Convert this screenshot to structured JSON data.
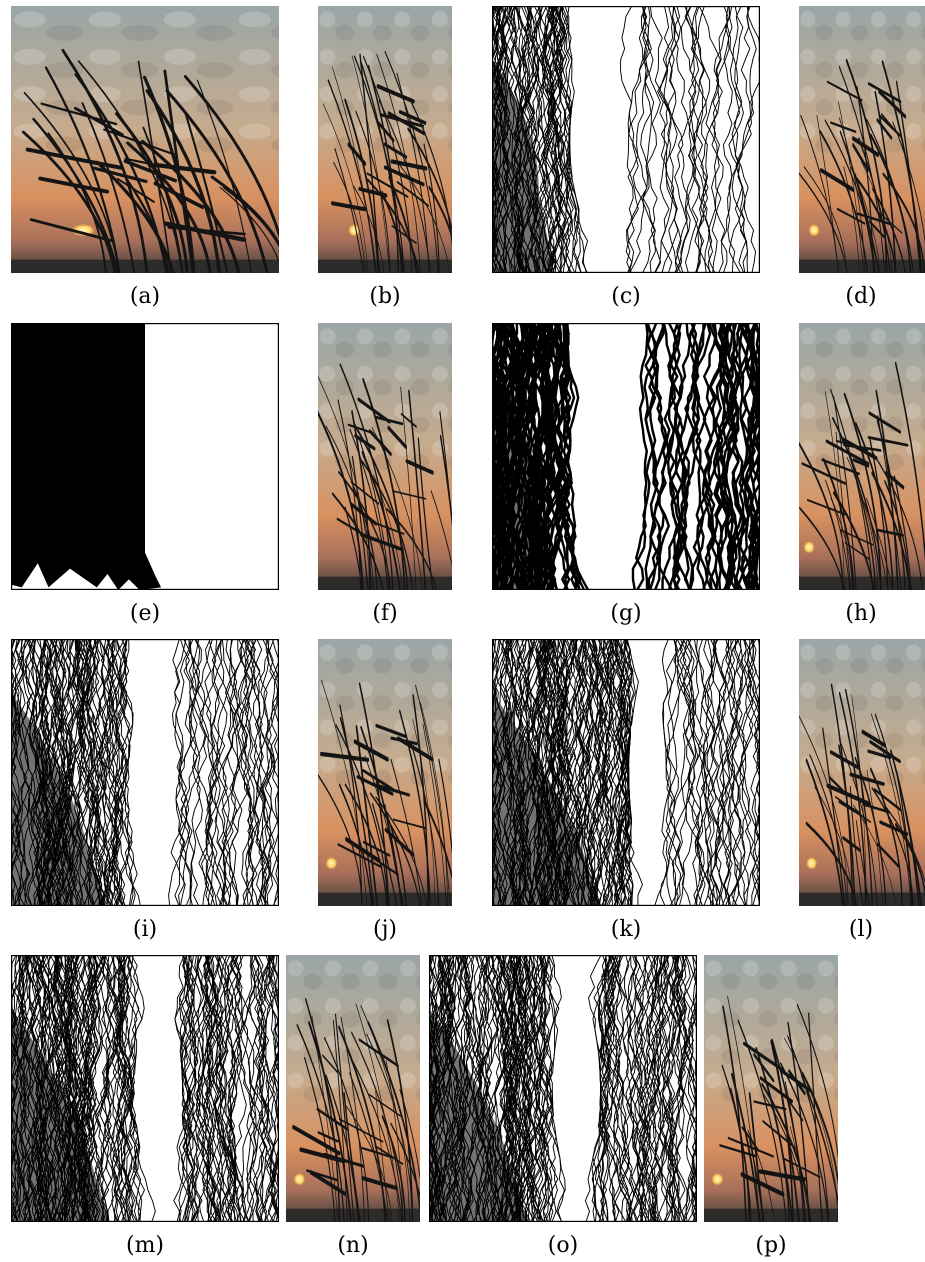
{
  "figure": {
    "panels": [
      {
        "id": "a",
        "caption": "(a)",
        "kind": "photo",
        "content": "sunset with reeds, original"
      },
      {
        "id": "b",
        "caption": "(b)",
        "kind": "photo",
        "content": "retargeted narrow result"
      },
      {
        "id": "c",
        "caption": "(c)",
        "kind": "seams",
        "content": "seam overlay"
      },
      {
        "id": "d",
        "caption": "(d)",
        "kind": "photo",
        "content": "retargeted narrow result"
      },
      {
        "id": "e",
        "caption": "(e)",
        "kind": "block",
        "content": "removed region mask"
      },
      {
        "id": "f",
        "caption": "(f)",
        "kind": "photo",
        "content": "retargeted narrow result"
      },
      {
        "id": "g",
        "caption": "(g)",
        "kind": "seams",
        "content": "seam overlay"
      },
      {
        "id": "h",
        "caption": "(h)",
        "kind": "photo",
        "content": "retargeted narrow result"
      },
      {
        "id": "i",
        "caption": "(i)",
        "kind": "seams",
        "content": "seam overlay"
      },
      {
        "id": "j",
        "caption": "(j)",
        "kind": "photo",
        "content": "retargeted narrow result"
      },
      {
        "id": "k",
        "caption": "(k)",
        "kind": "seams",
        "content": "seam overlay"
      },
      {
        "id": "l",
        "caption": "(l)",
        "kind": "photo",
        "content": "retargeted narrow result"
      },
      {
        "id": "m",
        "caption": "(m)",
        "kind": "seams",
        "content": "seam overlay"
      },
      {
        "id": "n",
        "caption": "(n)",
        "kind": "photo",
        "content": "retargeted narrow result"
      },
      {
        "id": "o",
        "caption": "(o)",
        "kind": "seams",
        "content": "seam overlay"
      },
      {
        "id": "p",
        "caption": "(p)",
        "kind": "photo",
        "content": "retargeted narrow result"
      }
    ],
    "colors": {
      "sky_top": "#9aa6a7",
      "sky_mid": "#c8a98a",
      "horizon": "#d88a55",
      "ground": "#3c3a36",
      "sun": "#ffe9a0",
      "ink": "#000000",
      "paper": "#ffffff"
    }
  }
}
